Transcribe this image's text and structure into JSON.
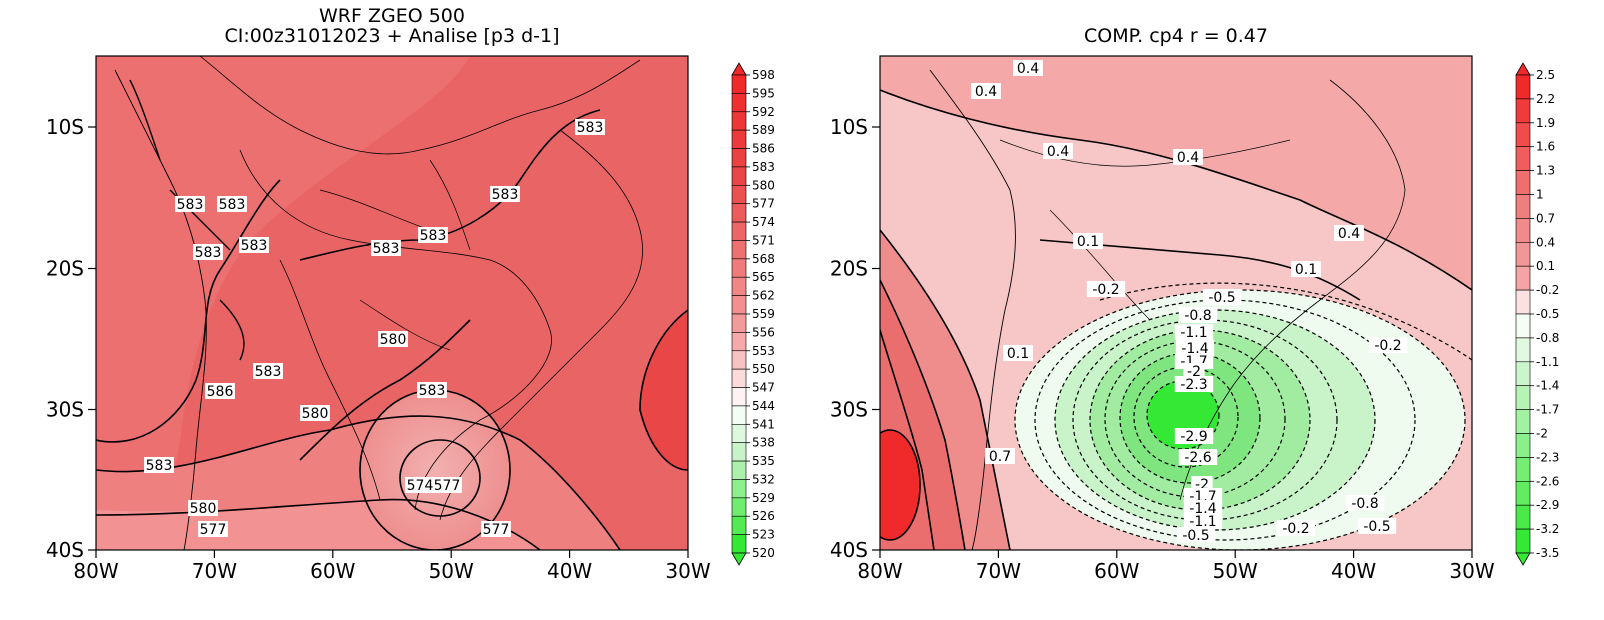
{
  "left_panel": {
    "title_line1": "WRF ZGEO 500",
    "title_line2": "CI:00z31012023 + Analise  [p3 d-1]",
    "x_ticks": [
      "80W",
      "70W",
      "60W",
      "50W",
      "40W",
      "30W"
    ],
    "y_ticks": [
      "10S",
      "20S",
      "30S",
      "40S"
    ],
    "colorbar_labels": [
      "598",
      "595",
      "592",
      "589",
      "586",
      "583",
      "580",
      "577",
      "574",
      "571",
      "568",
      "565",
      "562",
      "559",
      "556",
      "553",
      "550",
      "547",
      "544",
      "541",
      "538",
      "535",
      "532",
      "529",
      "526",
      "523",
      "520"
    ],
    "contour_labels": [
      "583",
      "583",
      "583",
      "583",
      "583",
      "583",
      "583",
      "583",
      "583",
      "580",
      "580",
      "586",
      "583",
      "583",
      "577",
      "574",
      "577",
      "580",
      "577"
    ]
  },
  "right_panel": {
    "title": "COMP. cp4  r =  0.47",
    "x_ticks": [
      "80W",
      "70W",
      "60W",
      "50W",
      "40W",
      "30W"
    ],
    "y_ticks": [
      "10S",
      "20S",
      "30S",
      "40S"
    ],
    "colorbar_labels": [
      "2.5",
      "2.2",
      "1.9",
      "1.6",
      "1.3",
      "1",
      "0.7",
      "0.4",
      "0.1",
      "-0.2",
      "-0.5",
      "-0.8",
      "-1.1",
      "-1.4",
      "-1.7",
      "-2",
      "-2.3",
      "-2.6",
      "-2.9",
      "-3.2",
      "-3.5"
    ],
    "contour_labels": [
      "0.4",
      "0.4",
      "0.4",
      "0.4",
      "0.4",
      "0.1",
      "0.1",
      "-0.2",
      "0.1",
      "-0.5",
      "-0.8",
      "-1.1",
      "-1.4",
      "-1.7",
      "-2",
      "-2.3",
      "-0.2",
      "0.7",
      "-2.9",
      "-2.6",
      "-2",
      "-1.7",
      "-1.4",
      "-1.1",
      "-0.5",
      "-0.2",
      "-0.8",
      "-0.5"
    ]
  },
  "colors": {
    "red_light": "#f4a3a3",
    "red_mid": "#ef7b7b",
    "red_base": "#e96565",
    "red_strong": "#e94747",
    "red_max": "#f02a2a",
    "green_max": "#36e836",
    "white": "#ffffff"
  }
}
